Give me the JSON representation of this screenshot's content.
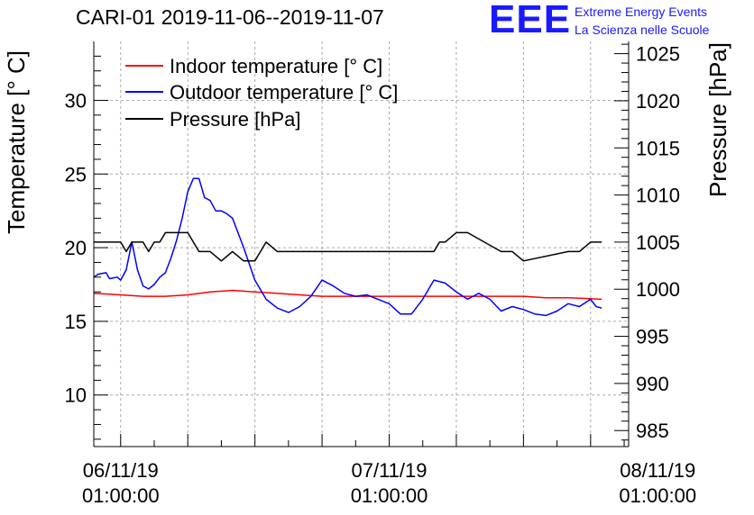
{
  "header": {
    "title": "CARI-01 2019-11-06--2019-11-07",
    "logo_text": "EEE",
    "logo_line1": "Extreme Energy Events",
    "logo_line2": "La Scienza nelle Scuole"
  },
  "colors": {
    "indoor": "#ff0000",
    "outdoor": "#0000ff",
    "pressure": "#000000",
    "logo": "#1a1aff",
    "grid": "#aaaaaa"
  },
  "chart_data": {
    "type": "line",
    "title": "CARI-01 2019-11-06--2019-11-07",
    "ylabel": "Temperature [° C]",
    "y2label": "Pressure [hPa]",
    "x_unit": "hours since 06/11/19 01:00:00",
    "xlim": [
      -2.4,
      45.4
    ],
    "ylim": [
      6.5,
      34.0
    ],
    "y2lim": [
      983.3,
      1026.3
    ],
    "grid": true,
    "legend_position": "top-left",
    "x_ticks": [
      {
        "value": 0,
        "date": "06/11/19",
        "time": "01:00:00"
      },
      {
        "value": 24,
        "date": "07/11/19",
        "time": "01:00:00"
      },
      {
        "value": 48,
        "date": "08/11/19",
        "time": "01:00:00"
      }
    ],
    "y_ticks": [
      10,
      15,
      20,
      25,
      30
    ],
    "y2_ticks": [
      985,
      990,
      995,
      1000,
      1005,
      1010,
      1015,
      1020,
      1025
    ],
    "series": [
      {
        "name": "Indoor temperature [° C]",
        "axis": "left",
        "color": "#ff0000",
        "x": [
          -3,
          0,
          2,
          4,
          6,
          8,
          10,
          12,
          14,
          16,
          18,
          20,
          22,
          24,
          26,
          28,
          30,
          32,
          34,
          36,
          38,
          40,
          43
        ],
        "y": [
          16.9,
          16.8,
          16.7,
          16.7,
          16.8,
          17.0,
          17.1,
          17.0,
          16.9,
          16.8,
          16.7,
          16.7,
          16.7,
          16.7,
          16.7,
          16.7,
          16.7,
          16.7,
          16.7,
          16.7,
          16.6,
          16.6,
          16.5
        ]
      },
      {
        "name": "Outdoor temperature [° C]",
        "axis": "left",
        "color": "#0000ff",
        "x": [
          -3,
          -2,
          -1.3,
          -1,
          -0.3,
          0,
          0.5,
          1.0,
          1.5,
          2.0,
          2.5,
          3.0,
          3.5,
          4.0,
          4.5,
          5.0,
          5.5,
          6.0,
          6.5,
          7.0,
          7.5,
          8.0,
          8.5,
          9.0,
          9.5,
          10.0,
          11.0,
          12.0,
          13.0,
          14.0,
          15.0,
          16.0,
          17.0,
          18.0,
          19.0,
          20.0,
          21.0,
          22.0,
          23.0,
          24.0,
          25.0,
          26.0,
          27.0,
          28.0,
          29.0,
          30.0,
          31.0,
          32.0,
          33.0,
          34.0,
          35.0,
          36.0,
          37.0,
          38.0,
          39.0,
          40.0,
          41.0,
          42.0,
          42.5,
          43.0
        ],
        "y": [
          18.0,
          18.2,
          18.3,
          17.9,
          18.0,
          17.8,
          18.5,
          20.4,
          18.5,
          17.4,
          17.2,
          17.5,
          18.0,
          18.3,
          19.3,
          20.5,
          22.0,
          23.8,
          24.7,
          24.7,
          23.4,
          23.2,
          22.5,
          22.5,
          22.3,
          22.0,
          20.0,
          17.8,
          16.5,
          15.9,
          15.6,
          16.0,
          16.7,
          17.8,
          17.4,
          16.9,
          16.7,
          16.8,
          16.5,
          16.2,
          15.5,
          15.5,
          16.5,
          17.8,
          17.6,
          17.0,
          16.5,
          16.9,
          16.5,
          15.7,
          16.0,
          15.8,
          15.5,
          15.4,
          15.7,
          16.2,
          16.0,
          16.5,
          16.0,
          15.9
        ]
      },
      {
        "name": "Pressure [hPa]",
        "axis": "right",
        "color": "#000000",
        "x": [
          -3,
          0,
          0.5,
          1.0,
          2.0,
          2.5,
          3.0,
          3.5,
          4.0,
          4.5,
          5.0,
          6.0,
          7.0,
          8.0,
          9.0,
          10.0,
          11.0,
          12.0,
          13.0,
          14.0,
          15.0,
          20.0,
          28.0,
          28.5,
          29.0,
          30.0,
          31.0,
          34.0,
          35.0,
          36.0,
          40.0,
          41.0,
          42.0,
          43.0
        ],
        "y": [
          1005,
          1005,
          1004,
          1005,
          1005,
          1004,
          1005,
          1005,
          1006,
          1006,
          1006,
          1006,
          1004,
          1004,
          1003,
          1004,
          1003,
          1003,
          1005,
          1004,
          1004,
          1004,
          1004,
          1005,
          1005,
          1006,
          1006,
          1004,
          1004,
          1003,
          1004,
          1004,
          1005,
          1005
        ]
      }
    ]
  }
}
